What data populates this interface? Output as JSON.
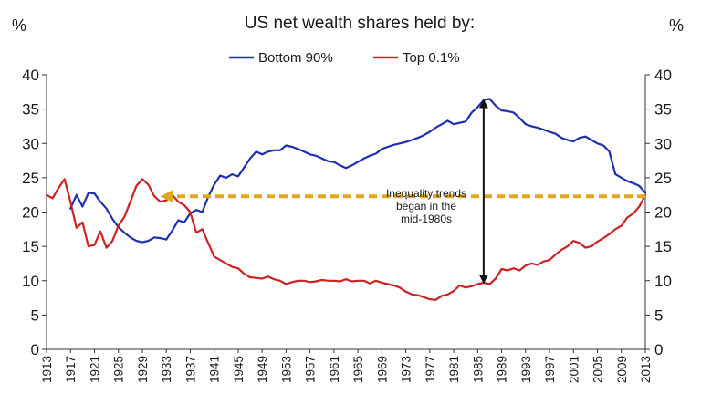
{
  "chart_data": {
    "type": "line",
    "title": "US net wealth shares held by:",
    "ylabel_left": "%",
    "ylabel_right": "%",
    "ylim": [
      0,
      40
    ],
    "yticks": [
      0,
      5,
      10,
      15,
      20,
      25,
      30,
      35,
      40
    ],
    "xlim": [
      1913,
      2013
    ],
    "xticks": [
      "1913",
      "1917",
      "1921",
      "1925",
      "1929",
      "1933",
      "1937",
      "1941",
      "1945",
      "1949",
      "1953",
      "1957",
      "1961",
      "1965",
      "1969",
      "1973",
      "1977",
      "1981",
      "1985",
      "1989",
      "1993",
      "1997",
      "2001",
      "2005",
      "2009",
      "2013"
    ],
    "legend_position": "top-center",
    "colors": {
      "bottom90": "#1f2fb0",
      "top01": "#cc2222",
      "arrow": "#111111",
      "dashed": "#e0a820"
    },
    "series": [
      {
        "name": "Bottom 90%",
        "x": [
          1917,
          1918,
          1919,
          1920,
          1921,
          1922,
          1923,
          1924,
          1925,
          1926,
          1927,
          1928,
          1929,
          1930,
          1931,
          1932,
          1933,
          1934,
          1935,
          1936,
          1937,
          1938,
          1939,
          1940,
          1941,
          1942,
          1943,
          1944,
          1945,
          1946,
          1947,
          1948,
          1949,
          1950,
          1951,
          1952,
          1953,
          1954,
          1955,
          1956,
          1957,
          1958,
          1959,
          1960,
          1961,
          1962,
          1963,
          1964,
          1965,
          1966,
          1967,
          1968,
          1969,
          1970,
          1971,
          1972,
          1973,
          1974,
          1975,
          1976,
          1977,
          1978,
          1979,
          1980,
          1981,
          1982,
          1983,
          1984,
          1985,
          1986,
          1987,
          1988,
          1989,
          1990,
          1991,
          1992,
          1993,
          1994,
          1995,
          1996,
          1997,
          1998,
          1999,
          2000,
          2001,
          2002,
          2003,
          2004,
          2005,
          2006,
          2007,
          2008,
          2009,
          2010,
          2011,
          2012,
          2013
        ],
        "values": [
          20.5,
          22.5,
          20.8,
          22.8,
          22.7,
          21.5,
          20.5,
          19.0,
          17.8,
          17.0,
          16.3,
          15.8,
          15.6,
          15.8,
          16.3,
          16.2,
          16.0,
          17.3,
          18.8,
          18.5,
          19.8,
          20.3,
          20.0,
          22.2,
          24.0,
          25.3,
          25.0,
          25.5,
          25.2,
          26.5,
          27.8,
          28.8,
          28.4,
          28.8,
          29.0,
          29.0,
          29.7,
          29.5,
          29.2,
          28.8,
          28.4,
          28.2,
          27.8,
          27.4,
          27.3,
          26.8,
          26.4,
          26.8,
          27.3,
          27.8,
          28.2,
          28.5,
          29.2,
          29.5,
          29.8,
          30.0,
          30.2,
          30.5,
          30.8,
          31.2,
          31.7,
          32.3,
          32.8,
          33.3,
          32.8,
          33.0,
          33.2,
          34.5,
          35.3,
          36.3,
          36.5,
          35.5,
          34.8,
          34.7,
          34.5,
          33.7,
          32.8,
          32.5,
          32.3,
          32.0,
          31.7,
          31.4,
          30.8,
          30.5,
          30.3,
          30.8,
          31.0,
          30.5,
          30.0,
          29.7,
          28.8,
          25.5,
          25.0,
          24.5,
          24.2,
          23.8,
          22.8
        ]
      },
      {
        "name": "Top 0.1%",
        "x": [
          1913,
          1914,
          1915,
          1916,
          1917,
          1918,
          1919,
          1920,
          1921,
          1922,
          1923,
          1924,
          1925,
          1926,
          1927,
          1928,
          1929,
          1930,
          1931,
          1932,
          1933,
          1934,
          1935,
          1936,
          1937,
          1938,
          1939,
          1940,
          1941,
          1942,
          1943,
          1944,
          1945,
          1946,
          1947,
          1948,
          1949,
          1950,
          1951,
          1952,
          1953,
          1954,
          1955,
          1956,
          1957,
          1958,
          1959,
          1960,
          1961,
          1962,
          1963,
          1964,
          1965,
          1966,
          1967,
          1968,
          1969,
          1970,
          1971,
          1972,
          1973,
          1974,
          1975,
          1976,
          1977,
          1978,
          1979,
          1980,
          1981,
          1982,
          1983,
          1984,
          1985,
          1986,
          1987,
          1988,
          1989,
          1990,
          1991,
          1992,
          1993,
          1994,
          1995,
          1996,
          1997,
          1998,
          1999,
          2000,
          2001,
          2002,
          2003,
          2004,
          2005,
          2006,
          2007,
          2008,
          2009,
          2010,
          2011,
          2012,
          2013
        ],
        "values": [
          22.5,
          22.0,
          23.5,
          24.8,
          21.5,
          17.7,
          18.5,
          15.0,
          15.2,
          17.2,
          14.8,
          15.8,
          18.0,
          19.3,
          21.5,
          23.8,
          24.8,
          24.0,
          22.3,
          21.5,
          21.7,
          22.5,
          21.5,
          21.0,
          20.0,
          17.0,
          17.5,
          15.5,
          13.5,
          13.0,
          12.5,
          12.0,
          11.8,
          11.0,
          10.5,
          10.4,
          10.3,
          10.6,
          10.2,
          10.0,
          9.5,
          9.8,
          10.0,
          10.0,
          9.8,
          9.9,
          10.1,
          10.0,
          10.0,
          9.9,
          10.2,
          9.9,
          10.0,
          10.0,
          9.6,
          10.0,
          9.7,
          9.5,
          9.3,
          9.0,
          8.4,
          8.0,
          7.9,
          7.6,
          7.3,
          7.2,
          7.8,
          8.0,
          8.5,
          9.3,
          9.0,
          9.2,
          9.5,
          9.7,
          9.5,
          10.3,
          11.7,
          11.5,
          11.8,
          11.5,
          12.2,
          12.5,
          12.3,
          12.8,
          13.0,
          13.8,
          14.5,
          15.0,
          15.8,
          15.5,
          14.8,
          15.0,
          15.7,
          16.2,
          16.8,
          17.5,
          18.0,
          19.2,
          19.8,
          20.8,
          22.5
        ]
      }
    ],
    "annotation": {
      "lines": [
        "Inequality trends",
        "began in the",
        "mid-1980s"
      ],
      "arrow_x": 1986,
      "arrow_y_top": 35.8,
      "arrow_y_bottom": 10.2,
      "dashed_arrow_y": 22.3,
      "dashed_arrow_x_from": 2013,
      "dashed_arrow_x_to": 1932
    }
  }
}
